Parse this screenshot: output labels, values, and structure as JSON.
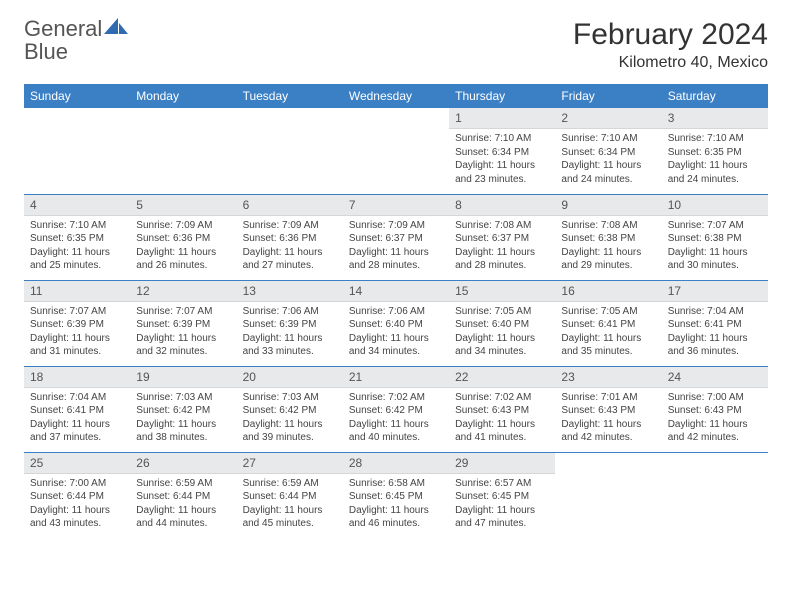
{
  "logo": {
    "text_gray": "General",
    "text_blue": "Blue"
  },
  "title": "February 2024",
  "location": "Kilometro 40, Mexico",
  "colors": {
    "header_bg": "#3b7fc4",
    "header_text": "#ffffff",
    "daynum_bg": "#e8e9ea",
    "row_border": "#3b7fc4",
    "body_text": "#444444"
  },
  "weekdays": [
    "Sunday",
    "Monday",
    "Tuesday",
    "Wednesday",
    "Thursday",
    "Friday",
    "Saturday"
  ],
  "first_weekday_index": 4,
  "days": [
    {
      "n": 1,
      "sunrise": "7:10 AM",
      "sunset": "6:34 PM",
      "daylight": "11 hours and 23 minutes."
    },
    {
      "n": 2,
      "sunrise": "7:10 AM",
      "sunset": "6:34 PM",
      "daylight": "11 hours and 24 minutes."
    },
    {
      "n": 3,
      "sunrise": "7:10 AM",
      "sunset": "6:35 PM",
      "daylight": "11 hours and 24 minutes."
    },
    {
      "n": 4,
      "sunrise": "7:10 AM",
      "sunset": "6:35 PM",
      "daylight": "11 hours and 25 minutes."
    },
    {
      "n": 5,
      "sunrise": "7:09 AM",
      "sunset": "6:36 PM",
      "daylight": "11 hours and 26 minutes."
    },
    {
      "n": 6,
      "sunrise": "7:09 AM",
      "sunset": "6:36 PM",
      "daylight": "11 hours and 27 minutes."
    },
    {
      "n": 7,
      "sunrise": "7:09 AM",
      "sunset": "6:37 PM",
      "daylight": "11 hours and 28 minutes."
    },
    {
      "n": 8,
      "sunrise": "7:08 AM",
      "sunset": "6:37 PM",
      "daylight": "11 hours and 28 minutes."
    },
    {
      "n": 9,
      "sunrise": "7:08 AM",
      "sunset": "6:38 PM",
      "daylight": "11 hours and 29 minutes."
    },
    {
      "n": 10,
      "sunrise": "7:07 AM",
      "sunset": "6:38 PM",
      "daylight": "11 hours and 30 minutes."
    },
    {
      "n": 11,
      "sunrise": "7:07 AM",
      "sunset": "6:39 PM",
      "daylight": "11 hours and 31 minutes."
    },
    {
      "n": 12,
      "sunrise": "7:07 AM",
      "sunset": "6:39 PM",
      "daylight": "11 hours and 32 minutes."
    },
    {
      "n": 13,
      "sunrise": "7:06 AM",
      "sunset": "6:39 PM",
      "daylight": "11 hours and 33 minutes."
    },
    {
      "n": 14,
      "sunrise": "7:06 AM",
      "sunset": "6:40 PM",
      "daylight": "11 hours and 34 minutes."
    },
    {
      "n": 15,
      "sunrise": "7:05 AM",
      "sunset": "6:40 PM",
      "daylight": "11 hours and 34 minutes."
    },
    {
      "n": 16,
      "sunrise": "7:05 AM",
      "sunset": "6:41 PM",
      "daylight": "11 hours and 35 minutes."
    },
    {
      "n": 17,
      "sunrise": "7:04 AM",
      "sunset": "6:41 PM",
      "daylight": "11 hours and 36 minutes."
    },
    {
      "n": 18,
      "sunrise": "7:04 AM",
      "sunset": "6:41 PM",
      "daylight": "11 hours and 37 minutes."
    },
    {
      "n": 19,
      "sunrise": "7:03 AM",
      "sunset": "6:42 PM",
      "daylight": "11 hours and 38 minutes."
    },
    {
      "n": 20,
      "sunrise": "7:03 AM",
      "sunset": "6:42 PM",
      "daylight": "11 hours and 39 minutes."
    },
    {
      "n": 21,
      "sunrise": "7:02 AM",
      "sunset": "6:42 PM",
      "daylight": "11 hours and 40 minutes."
    },
    {
      "n": 22,
      "sunrise": "7:02 AM",
      "sunset": "6:43 PM",
      "daylight": "11 hours and 41 minutes."
    },
    {
      "n": 23,
      "sunrise": "7:01 AM",
      "sunset": "6:43 PM",
      "daylight": "11 hours and 42 minutes."
    },
    {
      "n": 24,
      "sunrise": "7:00 AM",
      "sunset": "6:43 PM",
      "daylight": "11 hours and 42 minutes."
    },
    {
      "n": 25,
      "sunrise": "7:00 AM",
      "sunset": "6:44 PM",
      "daylight": "11 hours and 43 minutes."
    },
    {
      "n": 26,
      "sunrise": "6:59 AM",
      "sunset": "6:44 PM",
      "daylight": "11 hours and 44 minutes."
    },
    {
      "n": 27,
      "sunrise": "6:59 AM",
      "sunset": "6:44 PM",
      "daylight": "11 hours and 45 minutes."
    },
    {
      "n": 28,
      "sunrise": "6:58 AM",
      "sunset": "6:45 PM",
      "daylight": "11 hours and 46 minutes."
    },
    {
      "n": 29,
      "sunrise": "6:57 AM",
      "sunset": "6:45 PM",
      "daylight": "11 hours and 47 minutes."
    }
  ],
  "labels": {
    "sunrise": "Sunrise:",
    "sunset": "Sunset:",
    "daylight": "Daylight:"
  }
}
